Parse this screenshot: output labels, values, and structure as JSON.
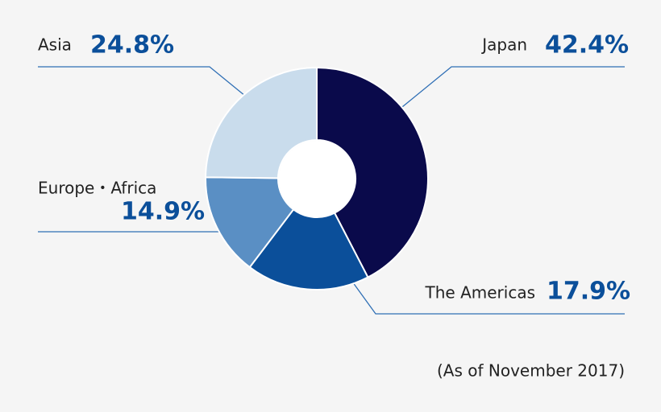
{
  "chart_data": {
    "type": "pie",
    "categories": [
      "Japan",
      "The Americas",
      "Europe・Africa",
      "Asia"
    ],
    "values": [
      42.4,
      17.9,
      14.9,
      24.8
    ],
    "value_labels": [
      "42.4%",
      "17.9%",
      "14.9%",
      "24.8%"
    ],
    "colors": [
      "#0a0a4b",
      "#0b4f9a",
      "#5a8fc4",
      "#c9dcec"
    ],
    "note": "(As of November 2017)"
  }
}
